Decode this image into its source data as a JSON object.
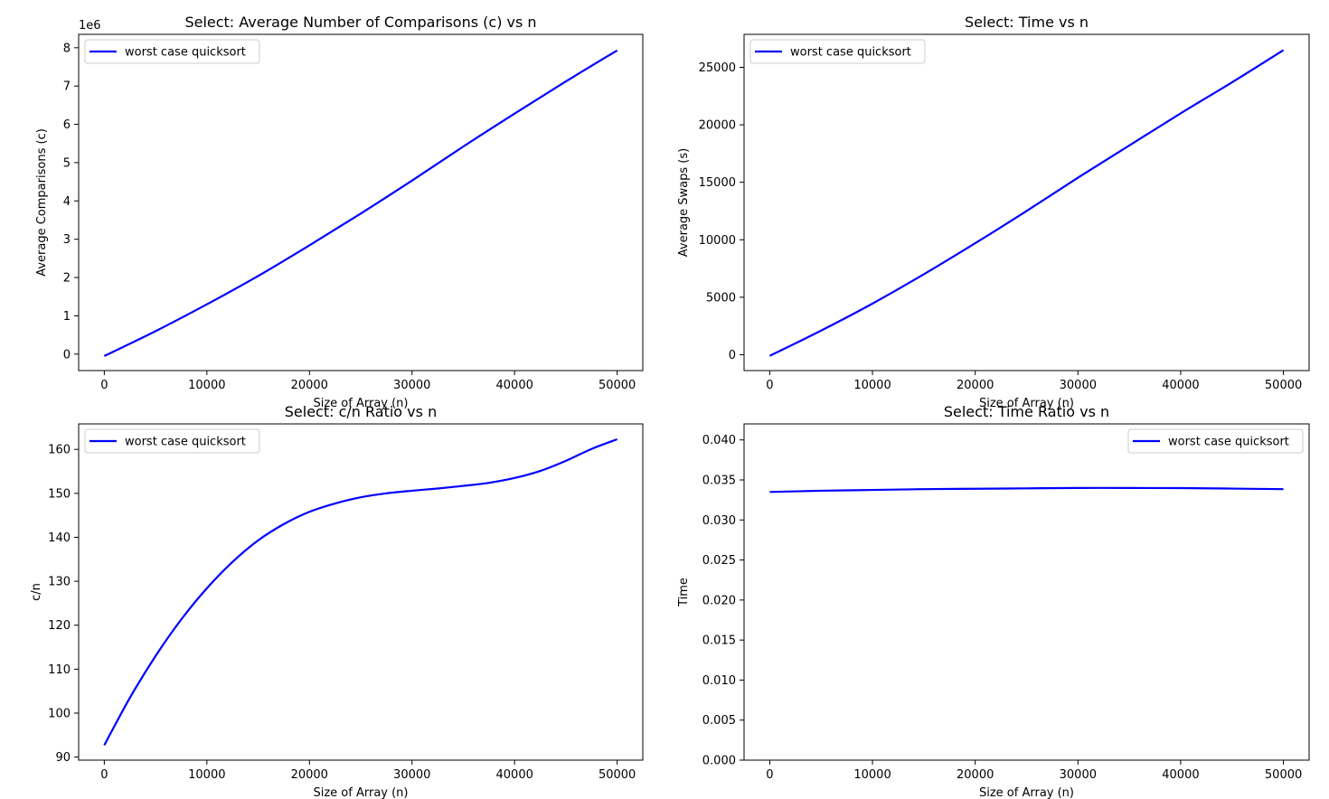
{
  "chart_data": [
    {
      "type": "line",
      "title": "Select: Average Number of Comparisons (c) vs n",
      "xlabel": "Size of Array (n)",
      "ylabel": "Average Comparisons (c)",
      "offset_label": "1e6",
      "xlim": [
        -2500,
        52500
      ],
      "ylim": [
        -0.43,
        8.35
      ],
      "xticks": [
        0,
        10000,
        20000,
        30000,
        40000,
        50000
      ],
      "yticks": [
        0,
        1,
        2,
        3,
        4,
        5,
        6,
        7,
        8
      ],
      "ytick_labels": [
        "0",
        "1",
        "2",
        "3",
        "4",
        "5",
        "6",
        "7",
        "8"
      ],
      "legend_position": "top-left",
      "grid": false,
      "series": [
        {
          "name": "worst case quicksort",
          "color": "#0000ff",
          "x": [
            0,
            5000,
            10000,
            15000,
            20000,
            25000,
            30000,
            35000,
            40000,
            45000,
            50000
          ],
          "y": [
            -0.05,
            0.6,
            1.3,
            2.04,
            2.84,
            3.67,
            4.53,
            5.42,
            6.28,
            7.12,
            7.93
          ]
        }
      ]
    },
    {
      "type": "line",
      "title": "Select: Time vs n",
      "xlabel": "Size of Array (n)",
      "ylabel": "Average Swaps (s)",
      "xlim": [
        -2500,
        52500
      ],
      "ylim": [
        -1380,
        27870
      ],
      "xticks": [
        0,
        10000,
        20000,
        30000,
        40000,
        50000
      ],
      "yticks": [
        0,
        5000,
        10000,
        15000,
        20000,
        25000
      ],
      "ytick_labels": [
        "0",
        "5000",
        "10000",
        "15000",
        "20000",
        "25000"
      ],
      "legend_position": "top-left",
      "grid": false,
      "series": [
        {
          "name": "worst case quicksort",
          "color": "#0000ff",
          "x": [
            0,
            5000,
            10000,
            15000,
            20000,
            25000,
            30000,
            35000,
            40000,
            45000,
            50000
          ],
          "y": [
            -100,
            2100,
            4450,
            7000,
            9700,
            12500,
            15400,
            18200,
            21000,
            23700,
            26500
          ]
        }
      ]
    },
    {
      "type": "line",
      "title": "Select: c/n Ratio vs n",
      "xlabel": "Size of Array (n)",
      "ylabel": "c/n",
      "xlim": [
        -2500,
        52500
      ],
      "ylim": [
        89.3,
        165.8
      ],
      "xticks": [
        0,
        10000,
        20000,
        30000,
        40000,
        50000
      ],
      "yticks": [
        90,
        100,
        110,
        120,
        130,
        140,
        150,
        160
      ],
      "ytick_labels": [
        "90",
        "100",
        "110",
        "120",
        "130",
        "140",
        "150",
        "160"
      ],
      "legend_position": "top-left",
      "grid": false,
      "series": [
        {
          "name": "worst case quicksort",
          "color": "#0000ff",
          "x": [
            0,
            2500,
            5000,
            7500,
            10000,
            12500,
            15000,
            17500,
            20000,
            22500,
            25000,
            27500,
            30000,
            32500,
            35000,
            37500,
            40000,
            42500,
            45000,
            47500,
            50000
          ],
          "y": [
            92.7,
            103.5,
            113.0,
            121.3,
            128.4,
            134.4,
            139.3,
            143.0,
            145.8,
            147.7,
            149.1,
            150.0,
            150.6,
            151.1,
            151.7,
            152.4,
            153.5,
            155.1,
            157.4,
            160.1,
            162.3
          ]
        }
      ]
    },
    {
      "type": "line",
      "title": "Select: Time Ratio vs n",
      "xlabel": "Size of Array (n)",
      "ylabel": "Time",
      "xlim": [
        -2500,
        52500
      ],
      "ylim": [
        0,
        0.042
      ],
      "xticks": [
        0,
        10000,
        20000,
        30000,
        40000,
        50000
      ],
      "yticks": [
        0,
        0.005,
        0.01,
        0.015,
        0.02,
        0.025,
        0.03,
        0.035,
        0.04
      ],
      "ytick_labels": [
        "0.000",
        "0.005",
        "0.010",
        "0.015",
        "0.020",
        "0.025",
        "0.030",
        "0.035",
        "0.040"
      ],
      "legend_position": "top-right",
      "grid": false,
      "series": [
        {
          "name": "worst case quicksort",
          "color": "#0000ff",
          "x": [
            0,
            5000,
            10000,
            15000,
            20000,
            25000,
            30000,
            35000,
            40000,
            45000,
            50000
          ],
          "y": [
            0.0335,
            0.03365,
            0.03375,
            0.03385,
            0.0339,
            0.03395,
            0.034,
            0.034,
            0.03398,
            0.03392,
            0.03385
          ]
        }
      ]
    }
  ]
}
